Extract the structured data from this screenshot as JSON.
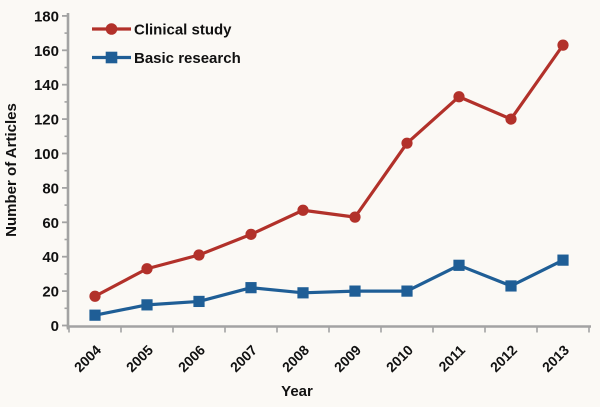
{
  "chart_data": {
    "type": "line",
    "title": "",
    "xlabel": "Year",
    "ylabel": "Number of Articles",
    "categories": [
      "2004",
      "2005",
      "2006",
      "2007",
      "2008",
      "2009",
      "2010",
      "2011",
      "2012",
      "2013"
    ],
    "series": [
      {
        "name": "Clinical study",
        "marker": "circle",
        "color": "#b2312a",
        "values": [
          17,
          33,
          41,
          53,
          67,
          63,
          106,
          133,
          120,
          163
        ]
      },
      {
        "name": "Basic research",
        "marker": "square",
        "color": "#1f5e96",
        "values": [
          6,
          12,
          14,
          22,
          19,
          20,
          20,
          35,
          23,
          38
        ]
      }
    ],
    "ylim": [
      0,
      180
    ],
    "ytick_step": 20,
    "yminor_step": 10,
    "grid": false,
    "legend_position": "top-left"
  },
  "styles": {
    "axis_color": "#a3a3a3",
    "text_color": "#111111",
    "background": "#fbf9f5"
  }
}
